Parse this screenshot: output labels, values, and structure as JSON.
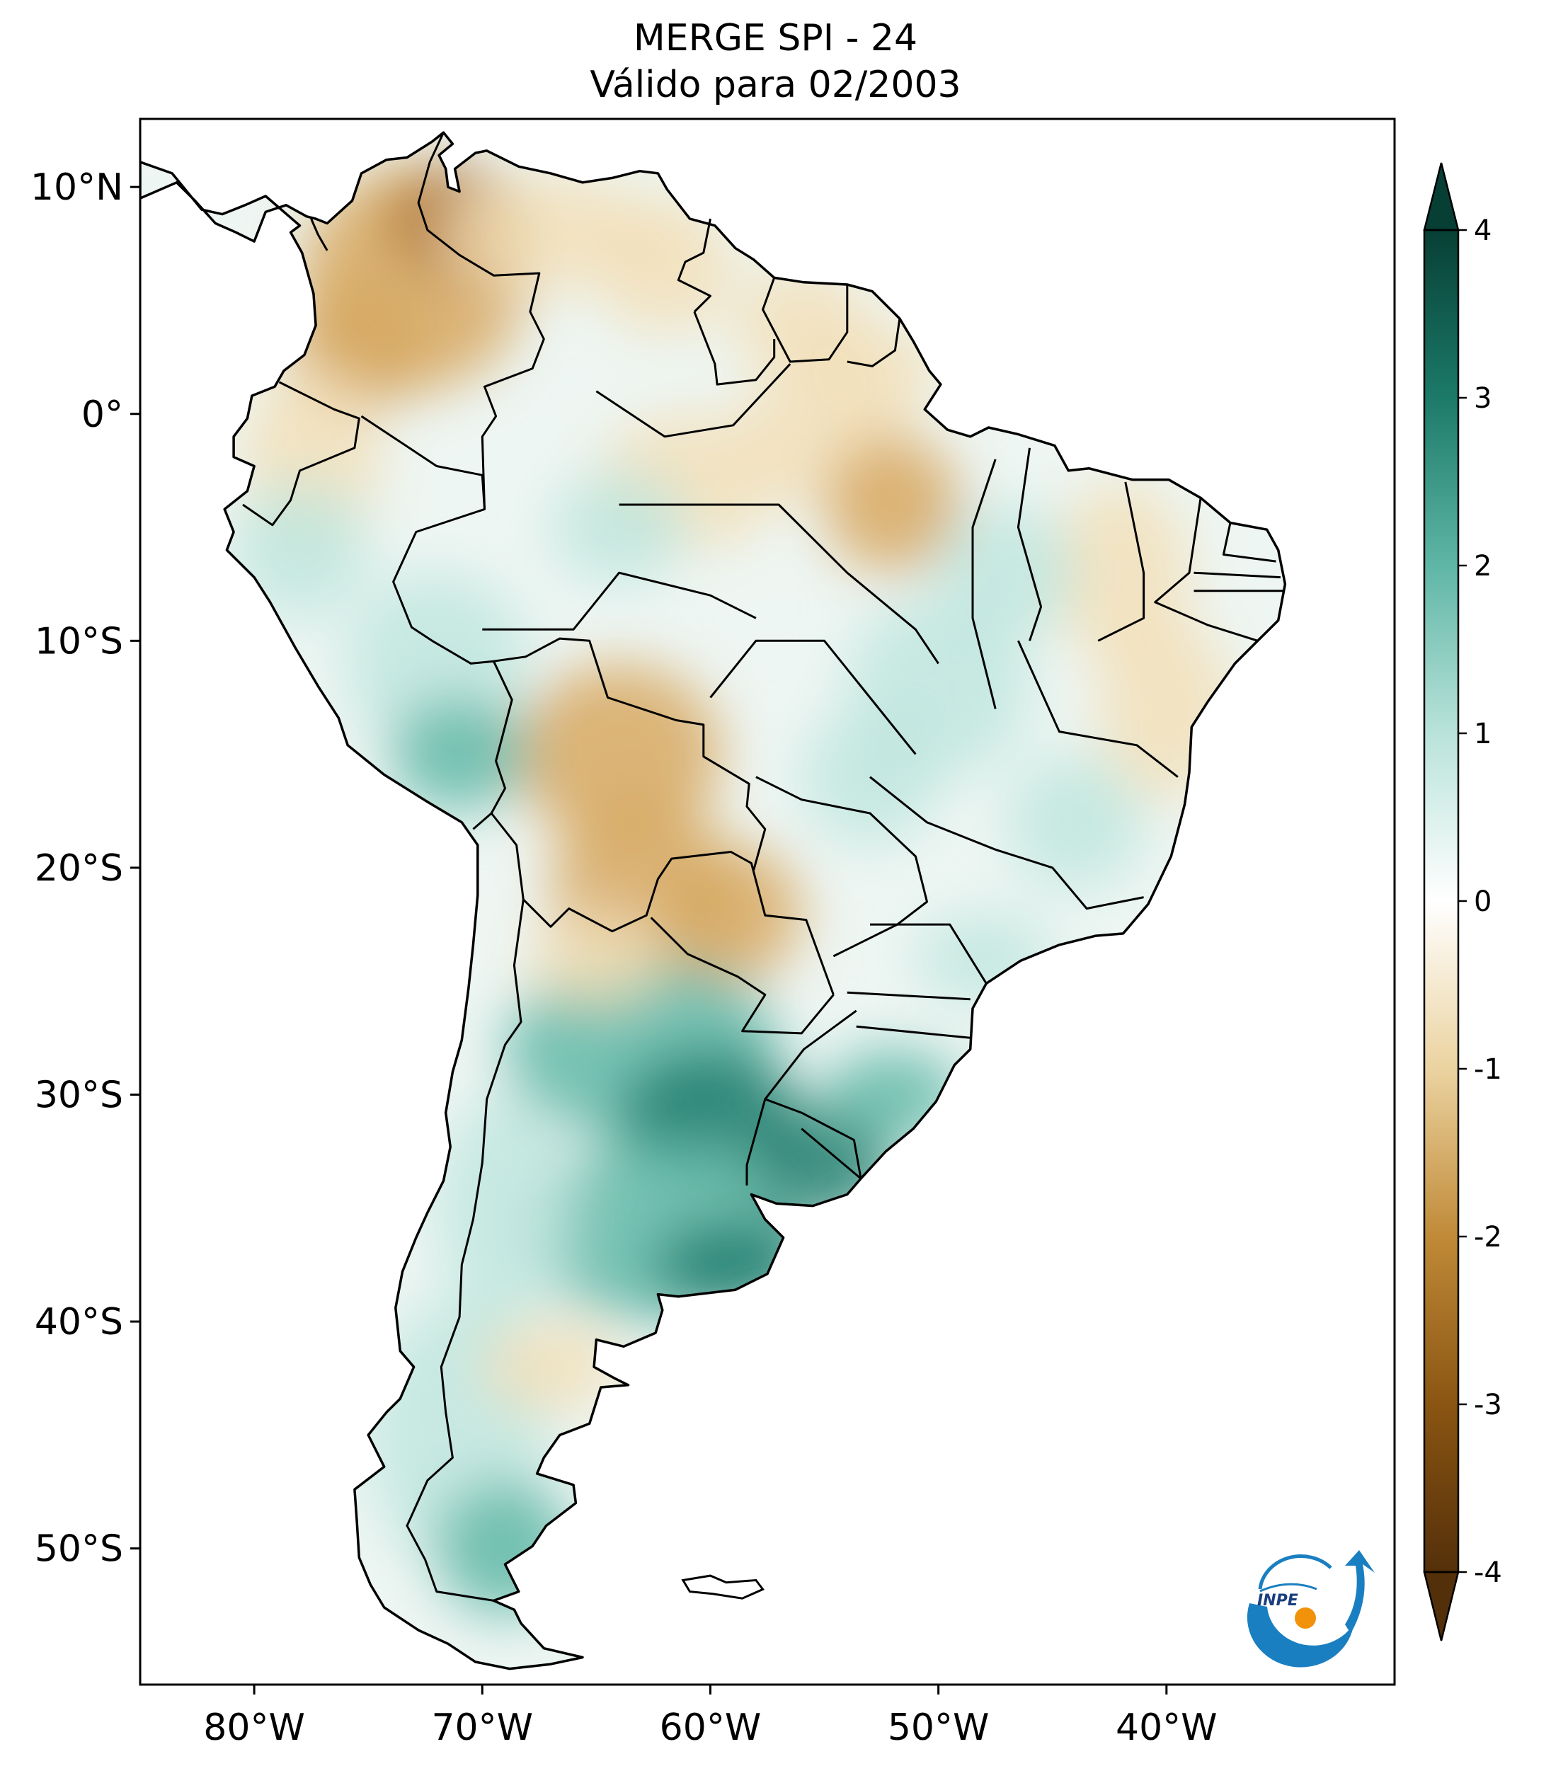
{
  "title": {
    "line1": "MERGE   SPI - 24",
    "line2": "Válido para 02/2003"
  },
  "map": {
    "lon_range": [
      -85,
      -30
    ],
    "lat_range": [
      -56,
      13
    ],
    "xticks": [
      {
        "value": -80,
        "label": "80°W"
      },
      {
        "value": -70,
        "label": "70°W"
      },
      {
        "value": -60,
        "label": "60°W"
      },
      {
        "value": -50,
        "label": "50°W"
      },
      {
        "value": -40,
        "label": "40°W"
      }
    ],
    "yticks": [
      {
        "value": 10,
        "label": "10°N"
      },
      {
        "value": 0,
        "label": "0°"
      },
      {
        "value": -10,
        "label": "10°S"
      },
      {
        "value": -20,
        "label": "20°S"
      },
      {
        "value": -30,
        "label": "30°S"
      },
      {
        "value": -40,
        "label": "40°S"
      },
      {
        "value": -50,
        "label": "50°S"
      }
    ]
  },
  "colorbar": {
    "min": -4,
    "max": 4,
    "extend": "both",
    "ticks": [
      {
        "value": 4,
        "label": "4"
      },
      {
        "value": 3,
        "label": "3"
      },
      {
        "value": 2,
        "label": "2"
      },
      {
        "value": 1,
        "label": "1"
      },
      {
        "value": 0,
        "label": "0"
      },
      {
        "value": -1,
        "label": "-1"
      },
      {
        "value": -2,
        "label": "-2"
      },
      {
        "value": -3,
        "label": "-3"
      },
      {
        "value": -4,
        "label": "-4"
      }
    ],
    "colors": {
      "wet_extreme": "#0a4a3e",
      "wet_strong": "#1f7e6e",
      "wet_moderate": "#62b8a8",
      "wet_mild": "#bfe6de",
      "neutral": "#ffffff",
      "dry_mild": "#f2dfb8",
      "dry_moderate": "#d7a860",
      "dry_strong": "#a86a20",
      "dry_extreme": "#54300a"
    }
  },
  "logo": {
    "text": "INPE",
    "icon": "inpe-logo-icon",
    "colors": {
      "blue": "#1a7fc1",
      "orange": "#f2910a"
    }
  }
}
